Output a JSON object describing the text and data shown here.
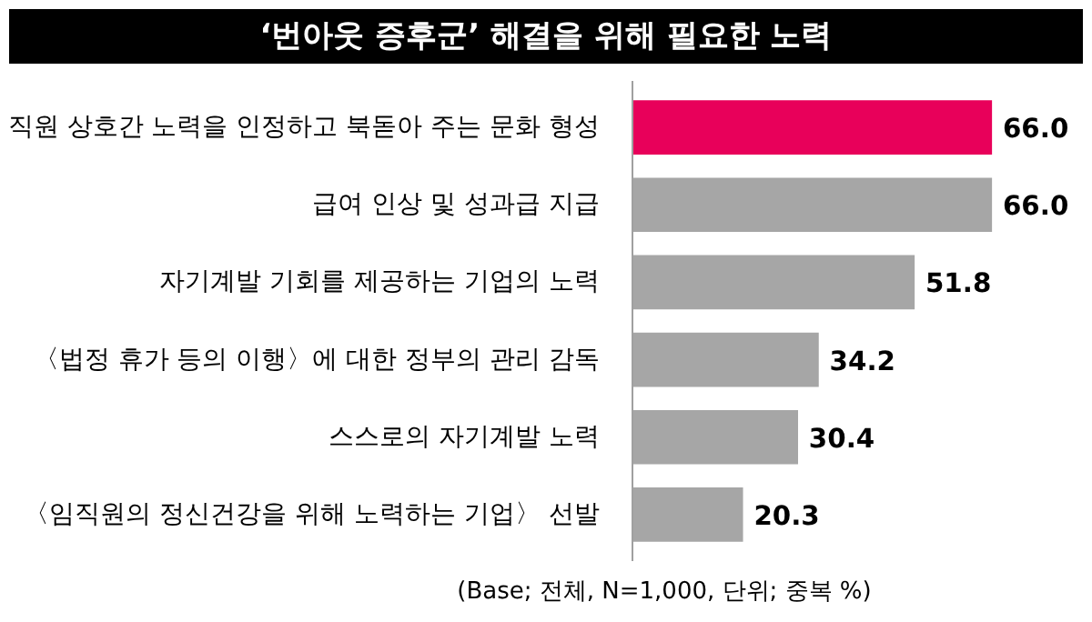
{
  "chart_data": {
    "type": "bar",
    "orientation": "horizontal",
    "title": "‘번아웃 증후군’ 해결을 위해 필요한 노력",
    "categories": [
      "직원 상호간 노력을 인정하고 북돋아 주는 문화 형성",
      "급여 인상 및 성과급 지급",
      "자기계발 기회를 제공하는 기업의 노력",
      "〈법정 휴가 등의 이행〉에 대한 정부의 관리 감독",
      "스스로의 자기계발 노력",
      "〈임직원의 정신건강을 위해 노력하는 기업〉 선발"
    ],
    "values": [
      66.0,
      66.0,
      51.8,
      34.2,
      30.4,
      20.3
    ],
    "value_labels": [
      "66.0",
      "66.0",
      "51.8",
      "34.2",
      "30.4",
      "20.3"
    ],
    "colors": [
      "#e8005a",
      "#a6a6a6",
      "#a6a6a6",
      "#a6a6a6",
      "#a6a6a6",
      "#a6a6a6"
    ],
    "annotations": [
      "(Base; 전체, N=1,000, 단위; 중복 %)"
    ]
  }
}
